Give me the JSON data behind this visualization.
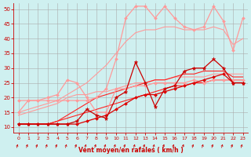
{
  "bg_color": "#cff0f0",
  "grid_color": "#aaaaaa",
  "xlabel": "Vent moyen/en rafales ( km/h )",
  "xlabel_color": "#cc0000",
  "tick_color": "#cc0000",
  "axis_color": "#cc0000",
  "xlim": [
    -0.5,
    23.5
  ],
  "ylim": [
    8,
    52
  ],
  "yticks": [
    10,
    15,
    20,
    25,
    30,
    35,
    40,
    45,
    50
  ],
  "xticks": [
    0,
    1,
    2,
    3,
    4,
    5,
    6,
    7,
    8,
    9,
    10,
    11,
    12,
    13,
    14,
    15,
    16,
    17,
    18,
    19,
    20,
    21,
    22,
    23
  ],
  "series": [
    {
      "x": [
        0,
        1,
        2,
        3,
        4,
        5,
        6,
        7,
        8,
        9,
        10,
        11,
        12,
        13,
        14,
        15,
        16,
        17,
        18,
        19,
        20,
        21,
        22,
        23
      ],
      "y": [
        11,
        11,
        11,
        11,
        11,
        11,
        11,
        12,
        13,
        14,
        16,
        18,
        20,
        21,
        21,
        22,
        23,
        24,
        25,
        26,
        27,
        28,
        25,
        25
      ],
      "color": "#dd0000",
      "lw": 0.9,
      "marker": "D",
      "ms": 2.0,
      "zorder": 5
    },
    {
      "x": [
        0,
        1,
        2,
        3,
        4,
        5,
        6,
        7,
        8,
        9,
        10,
        11,
        12,
        13,
        14,
        15,
        16,
        17,
        18,
        19,
        20,
        21,
        22,
        23
      ],
      "y": [
        11,
        11,
        11,
        11,
        11,
        11,
        12,
        16,
        14,
        13,
        20,
        22,
        32,
        25,
        17,
        23,
        24,
        29,
        30,
        30,
        33,
        30,
        25,
        25
      ],
      "color": "#cc0000",
      "lw": 0.9,
      "marker": "*",
      "ms": 3.5,
      "zorder": 6
    },
    {
      "x": [
        0,
        1,
        2,
        3,
        4,
        5,
        6,
        7,
        8,
        9,
        10,
        11,
        12,
        13,
        14,
        15,
        16,
        17,
        18,
        19,
        20,
        21,
        22,
        23
      ],
      "y": [
        11,
        11,
        11,
        11,
        12,
        13,
        14,
        15,
        16,
        17,
        18,
        19,
        20,
        21,
        22,
        23,
        24,
        24,
        25,
        25,
        26,
        26,
        26,
        26
      ],
      "color": "#ff2222",
      "lw": 0.8,
      "marker": null,
      "ms": 0,
      "zorder": 3
    },
    {
      "x": [
        0,
        1,
        2,
        3,
        4,
        5,
        6,
        7,
        8,
        9,
        10,
        11,
        12,
        13,
        14,
        15,
        16,
        17,
        18,
        19,
        20,
        21,
        22,
        23
      ],
      "y": [
        11,
        11,
        11,
        11,
        12,
        14,
        16,
        18,
        20,
        21,
        22,
        23,
        24,
        25,
        26,
        26,
        27,
        28,
        28,
        29,
        29,
        29,
        27,
        27
      ],
      "color": "#ff2222",
      "lw": 0.8,
      "marker": null,
      "ms": 0,
      "zorder": 3
    },
    {
      "x": [
        0,
        1,
        2,
        3,
        4,
        5,
        6,
        7,
        8,
        9,
        10,
        11,
        12,
        13,
        14,
        15,
        16,
        17,
        18,
        19,
        20,
        21,
        22,
        23
      ],
      "y": [
        15,
        19,
        19,
        20,
        21,
        26,
        25,
        20,
        15,
        15,
        23,
        23,
        24,
        24,
        25,
        25,
        25,
        25,
        26,
        25,
        26,
        26,
        26,
        26
      ],
      "color": "#ff9999",
      "lw": 0.9,
      "marker": "D",
      "ms": 2.0,
      "zorder": 4
    },
    {
      "x": [
        0,
        1,
        2,
        3,
        4,
        5,
        6,
        7,
        8,
        9,
        10,
        11,
        12,
        13,
        14,
        15,
        16,
        17,
        18,
        19,
        20,
        21,
        22,
        23
      ],
      "y": [
        14,
        15,
        16,
        17,
        18,
        20,
        21,
        21,
        22,
        22,
        23,
        24,
        25,
        25,
        26,
        26,
        27,
        27,
        27,
        27,
        28,
        28,
        28,
        28
      ],
      "color": "#ff9999",
      "lw": 0.8,
      "marker": null,
      "ms": 0,
      "zorder": 2
    },
    {
      "x": [
        0,
        1,
        2,
        3,
        4,
        5,
        6,
        7,
        8,
        9,
        10,
        11,
        12,
        13,
        14,
        15,
        16,
        17,
        18,
        19,
        20,
        21,
        22,
        23
      ],
      "y": [
        19,
        19,
        19,
        19,
        19,
        19,
        19,
        19,
        20,
        23,
        33,
        47,
        51,
        51,
        47,
        51,
        47,
        44,
        43,
        44,
        51,
        46,
        36,
        47
      ],
      "color": "#ff9999",
      "lw": 0.9,
      "marker": "D",
      "ms": 2.0,
      "zorder": 4
    },
    {
      "x": [
        0,
        1,
        2,
        3,
        4,
        5,
        6,
        7,
        8,
        9,
        10,
        11,
        12,
        13,
        14,
        15,
        16,
        17,
        18,
        19,
        20,
        21,
        22,
        23
      ],
      "y": [
        15,
        16,
        17,
        18,
        19,
        21,
        23,
        25,
        28,
        31,
        35,
        39,
        42,
        43,
        43,
        44,
        44,
        43,
        43,
        43,
        44,
        43,
        38,
        40
      ],
      "color": "#ff9999",
      "lw": 0.8,
      "marker": null,
      "ms": 0,
      "zorder": 2
    }
  ],
  "arrow_color": "#cc0000"
}
